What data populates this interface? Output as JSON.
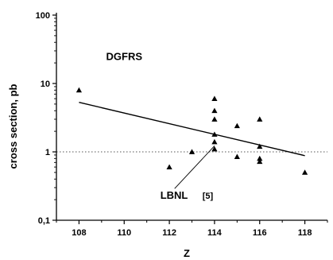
{
  "chart_data": {
    "type": "scatter",
    "xlabel": "Z",
    "ylabel": "cross section, pb",
    "xlim": [
      107,
      119
    ],
    "ylim": [
      0.1,
      100
    ],
    "yscale": "log",
    "xticks": [
      108,
      110,
      112,
      114,
      116,
      118
    ],
    "yticks": [
      {
        "value": 0.1,
        "label": "0,1"
      },
      {
        "value": 1,
        "label": "1"
      },
      {
        "value": 10,
        "label": "10"
      },
      {
        "value": 100,
        "label": "100"
      }
    ],
    "reference_line": {
      "y": 1,
      "style": "dotted"
    },
    "points": [
      {
        "x": 108,
        "y": 8.0
      },
      {
        "x": 112,
        "y": 0.6
      },
      {
        "x": 113,
        "y": 1.0
      },
      {
        "x": 114,
        "y": 6.0
      },
      {
        "x": 114,
        "y": 4.0
      },
      {
        "x": 114,
        "y": 3.0
      },
      {
        "x": 114,
        "y": 1.8
      },
      {
        "x": 114,
        "y": 1.4
      },
      {
        "x": 114,
        "y": 1.1
      },
      {
        "x": 115,
        "y": 2.4
      },
      {
        "x": 115,
        "y": 0.85
      },
      {
        "x": 116,
        "y": 3.0
      },
      {
        "x": 116,
        "y": 1.2
      },
      {
        "x": 116,
        "y": 0.8
      },
      {
        "x": 116,
        "y": 0.72
      },
      {
        "x": 118,
        "y": 0.5
      }
    ],
    "trend_line": {
      "x": [
        108,
        118
      ],
      "y": [
        5.3,
        0.88
      ]
    },
    "annotations": [
      {
        "text": "DGFRS",
        "x": 109.2,
        "y": 22
      },
      {
        "text": "LBNL",
        "ref": "[5]",
        "x": 111.6,
        "y": 0.205,
        "arrow_to": {
          "x": 114,
          "y": 1.4
        }
      }
    ]
  }
}
